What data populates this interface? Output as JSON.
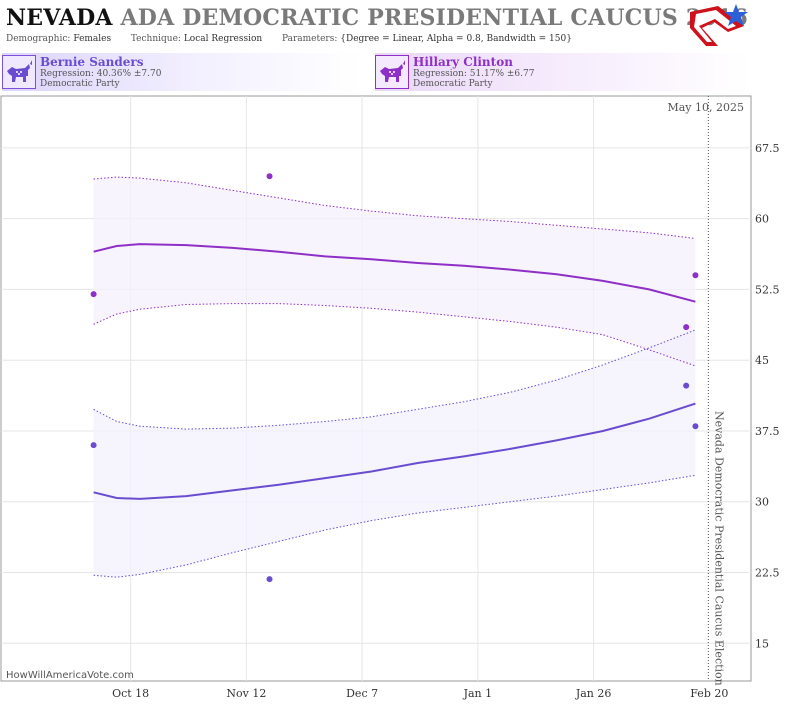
{
  "header": {
    "title_state": "NEVADA",
    "title_rest": "ADA DEMOCRATIC PRESIDENTIAL CAUCUS 2016",
    "demographic_label": "Demographic:",
    "demographic_value": "Females",
    "technique_label": "Technique:",
    "technique_value": "Local Regression",
    "parameters_label": "Parameters:",
    "parameters_value": "{Degree = Linear, Alpha = 0.8, Bandwidth = 150}"
  },
  "candidates": [
    {
      "name": "Bernie Sanders",
      "regression": "Regression: 40.36% ±7.70",
      "party": "Democratic Party",
      "color": "#6a4cd1",
      "icon": "donkey-icon"
    },
    {
      "name": "Hillary Clinton",
      "regression": "Regression: 51.17% ±6.77",
      "party": "Democratic Party",
      "color": "#8e2fc7",
      "icon": "donkey-icon"
    }
  ],
  "chart_data": {
    "type": "line",
    "date_label": "May 10, 2025",
    "election_label": "Nevada Democratic Presidential Caucus Election",
    "site_label": "HowWillAmericaVote.com",
    "x_ticks": [
      {
        "label": "Oct 18",
        "day": 18
      },
      {
        "label": "Nov 12",
        "day": 43
      },
      {
        "label": "Dec 7",
        "day": 68
      },
      {
        "label": "Jan 1",
        "day": 93
      },
      {
        "label": "Jan 26",
        "day": 118
      },
      {
        "label": "Feb 20",
        "day": 143
      }
    ],
    "y_ticks": [
      15,
      22.5,
      30,
      37.5,
      45,
      52.5,
      60,
      67.5
    ],
    "ylim": [
      11,
      73
    ],
    "xlim_days": [
      -10,
      152
    ],
    "election_day": 143,
    "series": [
      {
        "name": "Hillary Clinton",
        "color": "#8e2fc7",
        "band_fill": "#f6f0fc",
        "points": [
          [
            10,
            52
          ],
          [
            48,
            64.5
          ],
          [
            138,
            48.5
          ],
          [
            140,
            54
          ]
        ],
        "fit": [
          [
            10,
            56.5
          ],
          [
            15,
            57.1
          ],
          [
            20,
            57.3
          ],
          [
            30,
            57.2
          ],
          [
            40,
            56.9
          ],
          [
            50,
            56.5
          ],
          [
            60,
            56.0
          ],
          [
            70,
            55.7
          ],
          [
            80,
            55.3
          ],
          [
            90,
            55.0
          ],
          [
            100,
            54.6
          ],
          [
            110,
            54.1
          ],
          [
            120,
            53.4
          ],
          [
            130,
            52.5
          ],
          [
            140,
            51.2
          ]
        ],
        "upper": [
          [
            10,
            64.2
          ],
          [
            15,
            64.4
          ],
          [
            20,
            64.3
          ],
          [
            30,
            63.8
          ],
          [
            40,
            63.0
          ],
          [
            50,
            62.2
          ],
          [
            60,
            61.4
          ],
          [
            70,
            60.8
          ],
          [
            80,
            60.3
          ],
          [
            90,
            60.0
          ],
          [
            100,
            59.7
          ],
          [
            110,
            59.3
          ],
          [
            120,
            58.9
          ],
          [
            130,
            58.5
          ],
          [
            140,
            57.9
          ]
        ],
        "lower": [
          [
            10,
            48.8
          ],
          [
            15,
            49.9
          ],
          [
            20,
            50.4
          ],
          [
            30,
            50.9
          ],
          [
            40,
            51.0
          ],
          [
            50,
            51.0
          ],
          [
            60,
            50.8
          ],
          [
            70,
            50.5
          ],
          [
            80,
            50.1
          ],
          [
            90,
            49.6
          ],
          [
            100,
            49.1
          ],
          [
            110,
            48.5
          ],
          [
            120,
            47.7
          ],
          [
            130,
            46.1
          ],
          [
            140,
            44.4
          ]
        ]
      },
      {
        "name": "Bernie Sanders",
        "color": "#6a4cd1",
        "band_fill": "#f3f0fc",
        "points": [
          [
            10,
            36
          ],
          [
            48,
            21.8
          ],
          [
            138,
            42.3
          ],
          [
            140,
            38
          ]
        ],
        "fit": [
          [
            10,
            31.0
          ],
          [
            15,
            30.4
          ],
          [
            20,
            30.3
          ],
          [
            30,
            30.6
          ],
          [
            40,
            31.2
          ],
          [
            50,
            31.8
          ],
          [
            60,
            32.5
          ],
          [
            70,
            33.2
          ],
          [
            80,
            34.1
          ],
          [
            90,
            34.8
          ],
          [
            100,
            35.6
          ],
          [
            110,
            36.5
          ],
          [
            120,
            37.5
          ],
          [
            130,
            38.8
          ],
          [
            140,
            40.4
          ]
        ],
        "upper": [
          [
            10,
            39.8
          ],
          [
            15,
            38.5
          ],
          [
            20,
            38.0
          ],
          [
            30,
            37.7
          ],
          [
            40,
            37.8
          ],
          [
            50,
            38.1
          ],
          [
            60,
            38.5
          ],
          [
            70,
            39.0
          ],
          [
            80,
            39.8
          ],
          [
            90,
            40.6
          ],
          [
            100,
            41.6
          ],
          [
            110,
            42.9
          ],
          [
            120,
            44.5
          ],
          [
            130,
            46.3
          ],
          [
            140,
            48.2
          ]
        ],
        "lower": [
          [
            10,
            22.2
          ],
          [
            15,
            22.0
          ],
          [
            20,
            22.3
          ],
          [
            30,
            23.3
          ],
          [
            40,
            24.6
          ],
          [
            50,
            25.8
          ],
          [
            60,
            27.0
          ],
          [
            70,
            28.0
          ],
          [
            80,
            28.8
          ],
          [
            90,
            29.4
          ],
          [
            100,
            30.0
          ],
          [
            110,
            30.6
          ],
          [
            120,
            31.3
          ],
          [
            130,
            32.0
          ],
          [
            140,
            32.8
          ]
        ]
      }
    ]
  }
}
